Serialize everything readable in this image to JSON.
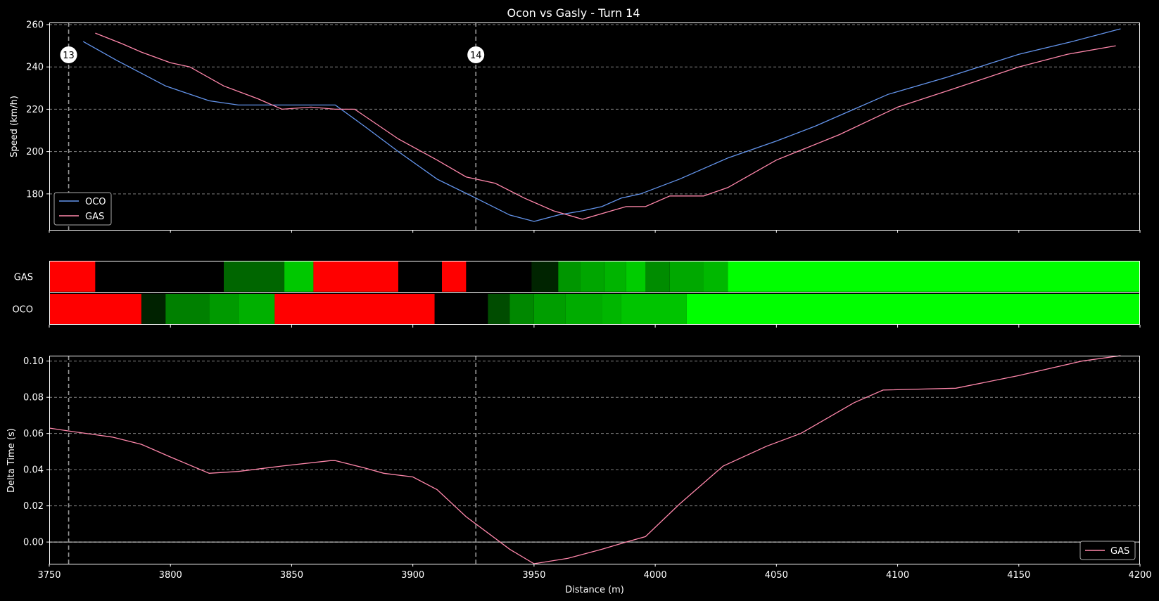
{
  "title": "Ocon vs Gasly - Turn 14",
  "xlabel": "Distance (m)",
  "colors": {
    "OCO": "#6495ED",
    "GAS": "#FF87AB",
    "background": "#000000",
    "axes": "#FFFFFF",
    "grid": "#808080"
  },
  "corners": [
    {
      "label": "13",
      "distance": 3758
    },
    {
      "label": "14",
      "distance": 3926
    }
  ],
  "chart_data": [
    {
      "type": "line",
      "panel": "speed",
      "ylabel": "Speed (km/h)",
      "xlim": [
        3750,
        4200
      ],
      "ylim": [
        163,
        261
      ],
      "xticks": [],
      "yticks": [
        180,
        200,
        220,
        240,
        260
      ],
      "grid": true,
      "legend_position": "lower-left",
      "series": [
        {
          "name": "OCO",
          "x": [
            3764,
            3778,
            3788,
            3798,
            3816,
            3828,
            3840,
            3850,
            3860,
            3868,
            3880,
            3894,
            3910,
            3926,
            3940,
            3950,
            3960,
            3970,
            3978,
            3986,
            3994,
            4010,
            4030,
            4050,
            4066,
            4082,
            4096,
            4120,
            4150,
            4172,
            4192
          ],
          "y": [
            252,
            243,
            237,
            231,
            224,
            222,
            222,
            222,
            222,
            222,
            212,
            200,
            187,
            178,
            170,
            167,
            170,
            172,
            174,
            178,
            180,
            187,
            197,
            205,
            212,
            220,
            227,
            235,
            246,
            252,
            258
          ]
        },
        {
          "name": "GAS",
          "x": [
            3769,
            3780,
            3788,
            3800,
            3808,
            3822,
            3836,
            3846,
            3858,
            3868,
            3876,
            3894,
            3910,
            3922,
            3934,
            3946,
            3958,
            3970,
            3982,
            3988,
            3996,
            4006,
            4020,
            4030,
            4050,
            4076,
            4100,
            4124,
            4150,
            4170,
            4190
          ],
          "y": [
            256,
            251,
            247,
            242,
            240,
            231,
            225,
            220,
            221,
            220,
            220,
            206,
            196,
            188,
            185,
            178,
            172,
            168,
            172,
            174,
            174,
            179,
            179,
            183,
            196,
            208,
            221,
            230,
            240,
            246,
            250
          ]
        }
      ]
    },
    {
      "type": "heatmap",
      "panel": "mini-sectors",
      "rows": [
        "GAS",
        "OCO"
      ],
      "xlim": [
        3750,
        4200
      ],
      "segments": {
        "GAS": [
          {
            "start": 3750,
            "end": 3769,
            "color": "#FF0000"
          },
          {
            "start": 3769,
            "end": 3822,
            "color": "#000000"
          },
          {
            "start": 3822,
            "end": 3847,
            "color": "#006600"
          },
          {
            "start": 3847,
            "end": 3859,
            "color": "#00C800"
          },
          {
            "start": 3859,
            "end": 3894,
            "color": "#FF0000"
          },
          {
            "start": 3894,
            "end": 3912,
            "color": "#000000"
          },
          {
            "start": 3912,
            "end": 3922,
            "color": "#FF0000"
          },
          {
            "start": 3922,
            "end": 3949,
            "color": "#000000"
          },
          {
            "start": 3949,
            "end": 3960,
            "color": "#002400"
          },
          {
            "start": 3960,
            "end": 3969,
            "color": "#009600"
          },
          {
            "start": 3969,
            "end": 3979,
            "color": "#00A600"
          },
          {
            "start": 3979,
            "end": 3988,
            "color": "#00B400"
          },
          {
            "start": 3988,
            "end": 3996,
            "color": "#00CC00"
          },
          {
            "start": 3996,
            "end": 4006,
            "color": "#008C00"
          },
          {
            "start": 4006,
            "end": 4020,
            "color": "#00A800"
          },
          {
            "start": 4020,
            "end": 4030,
            "color": "#00B800"
          },
          {
            "start": 4030,
            "end": 4200,
            "color": "#00FF00"
          }
        ],
        "OCO": [
          {
            "start": 3750,
            "end": 3788,
            "color": "#FF0000"
          },
          {
            "start": 3788,
            "end": 3798,
            "color": "#002200"
          },
          {
            "start": 3798,
            "end": 3816,
            "color": "#008000"
          },
          {
            "start": 3816,
            "end": 3828,
            "color": "#009A00"
          },
          {
            "start": 3828,
            "end": 3843,
            "color": "#00B000"
          },
          {
            "start": 3843,
            "end": 3909,
            "color": "#FF0000"
          },
          {
            "start": 3909,
            "end": 3931,
            "color": "#000000"
          },
          {
            "start": 3931,
            "end": 3940,
            "color": "#004C00"
          },
          {
            "start": 3940,
            "end": 3950,
            "color": "#008800"
          },
          {
            "start": 3950,
            "end": 3963,
            "color": "#009E00"
          },
          {
            "start": 3963,
            "end": 3978,
            "color": "#00AC00"
          },
          {
            "start": 3978,
            "end": 3986,
            "color": "#00B600"
          },
          {
            "start": 3986,
            "end": 4013,
            "color": "#00C400"
          },
          {
            "start": 4013,
            "end": 4200,
            "color": "#00FF00"
          }
        ]
      }
    },
    {
      "type": "line",
      "panel": "delta",
      "ylabel": "Delta Time (s)",
      "xlim": [
        3750,
        4200
      ],
      "ylim": [
        -0.012,
        0.103
      ],
      "xticks": [
        3750,
        3800,
        3850,
        3900,
        3950,
        4000,
        4050,
        4100,
        4150,
        4200
      ],
      "yticks": [
        0.0,
        0.02,
        0.04,
        0.06,
        0.08,
        0.1
      ],
      "ytick_labels": [
        "0.00",
        "0.02",
        "0.04",
        "0.06",
        "0.08",
        "0.10"
      ],
      "grid": true,
      "legend_position": "lower-right",
      "series": [
        {
          "name": "GAS",
          "x": [
            3750,
            3760,
            3776,
            3788,
            3800,
            3816,
            3828,
            3846,
            3866,
            3868,
            3880,
            3888,
            3900,
            3910,
            3922,
            3932,
            3940,
            3950,
            3964,
            3978,
            3988,
            3996,
            4010,
            4028,
            4046,
            4060,
            4082,
            4094,
            4124,
            4150,
            4176,
            4192
          ],
          "y": [
            0.063,
            0.061,
            0.058,
            0.054,
            0.047,
            0.038,
            0.039,
            0.042,
            0.045,
            0.045,
            0.041,
            0.038,
            0.036,
            0.029,
            0.014,
            0.004,
            -0.004,
            -0.012,
            -0.009,
            -0.004,
            0.0,
            0.003,
            0.021,
            0.042,
            0.053,
            0.06,
            0.077,
            0.084,
            0.085,
            0.092,
            0.1,
            0.103
          ]
        }
      ]
    }
  ]
}
